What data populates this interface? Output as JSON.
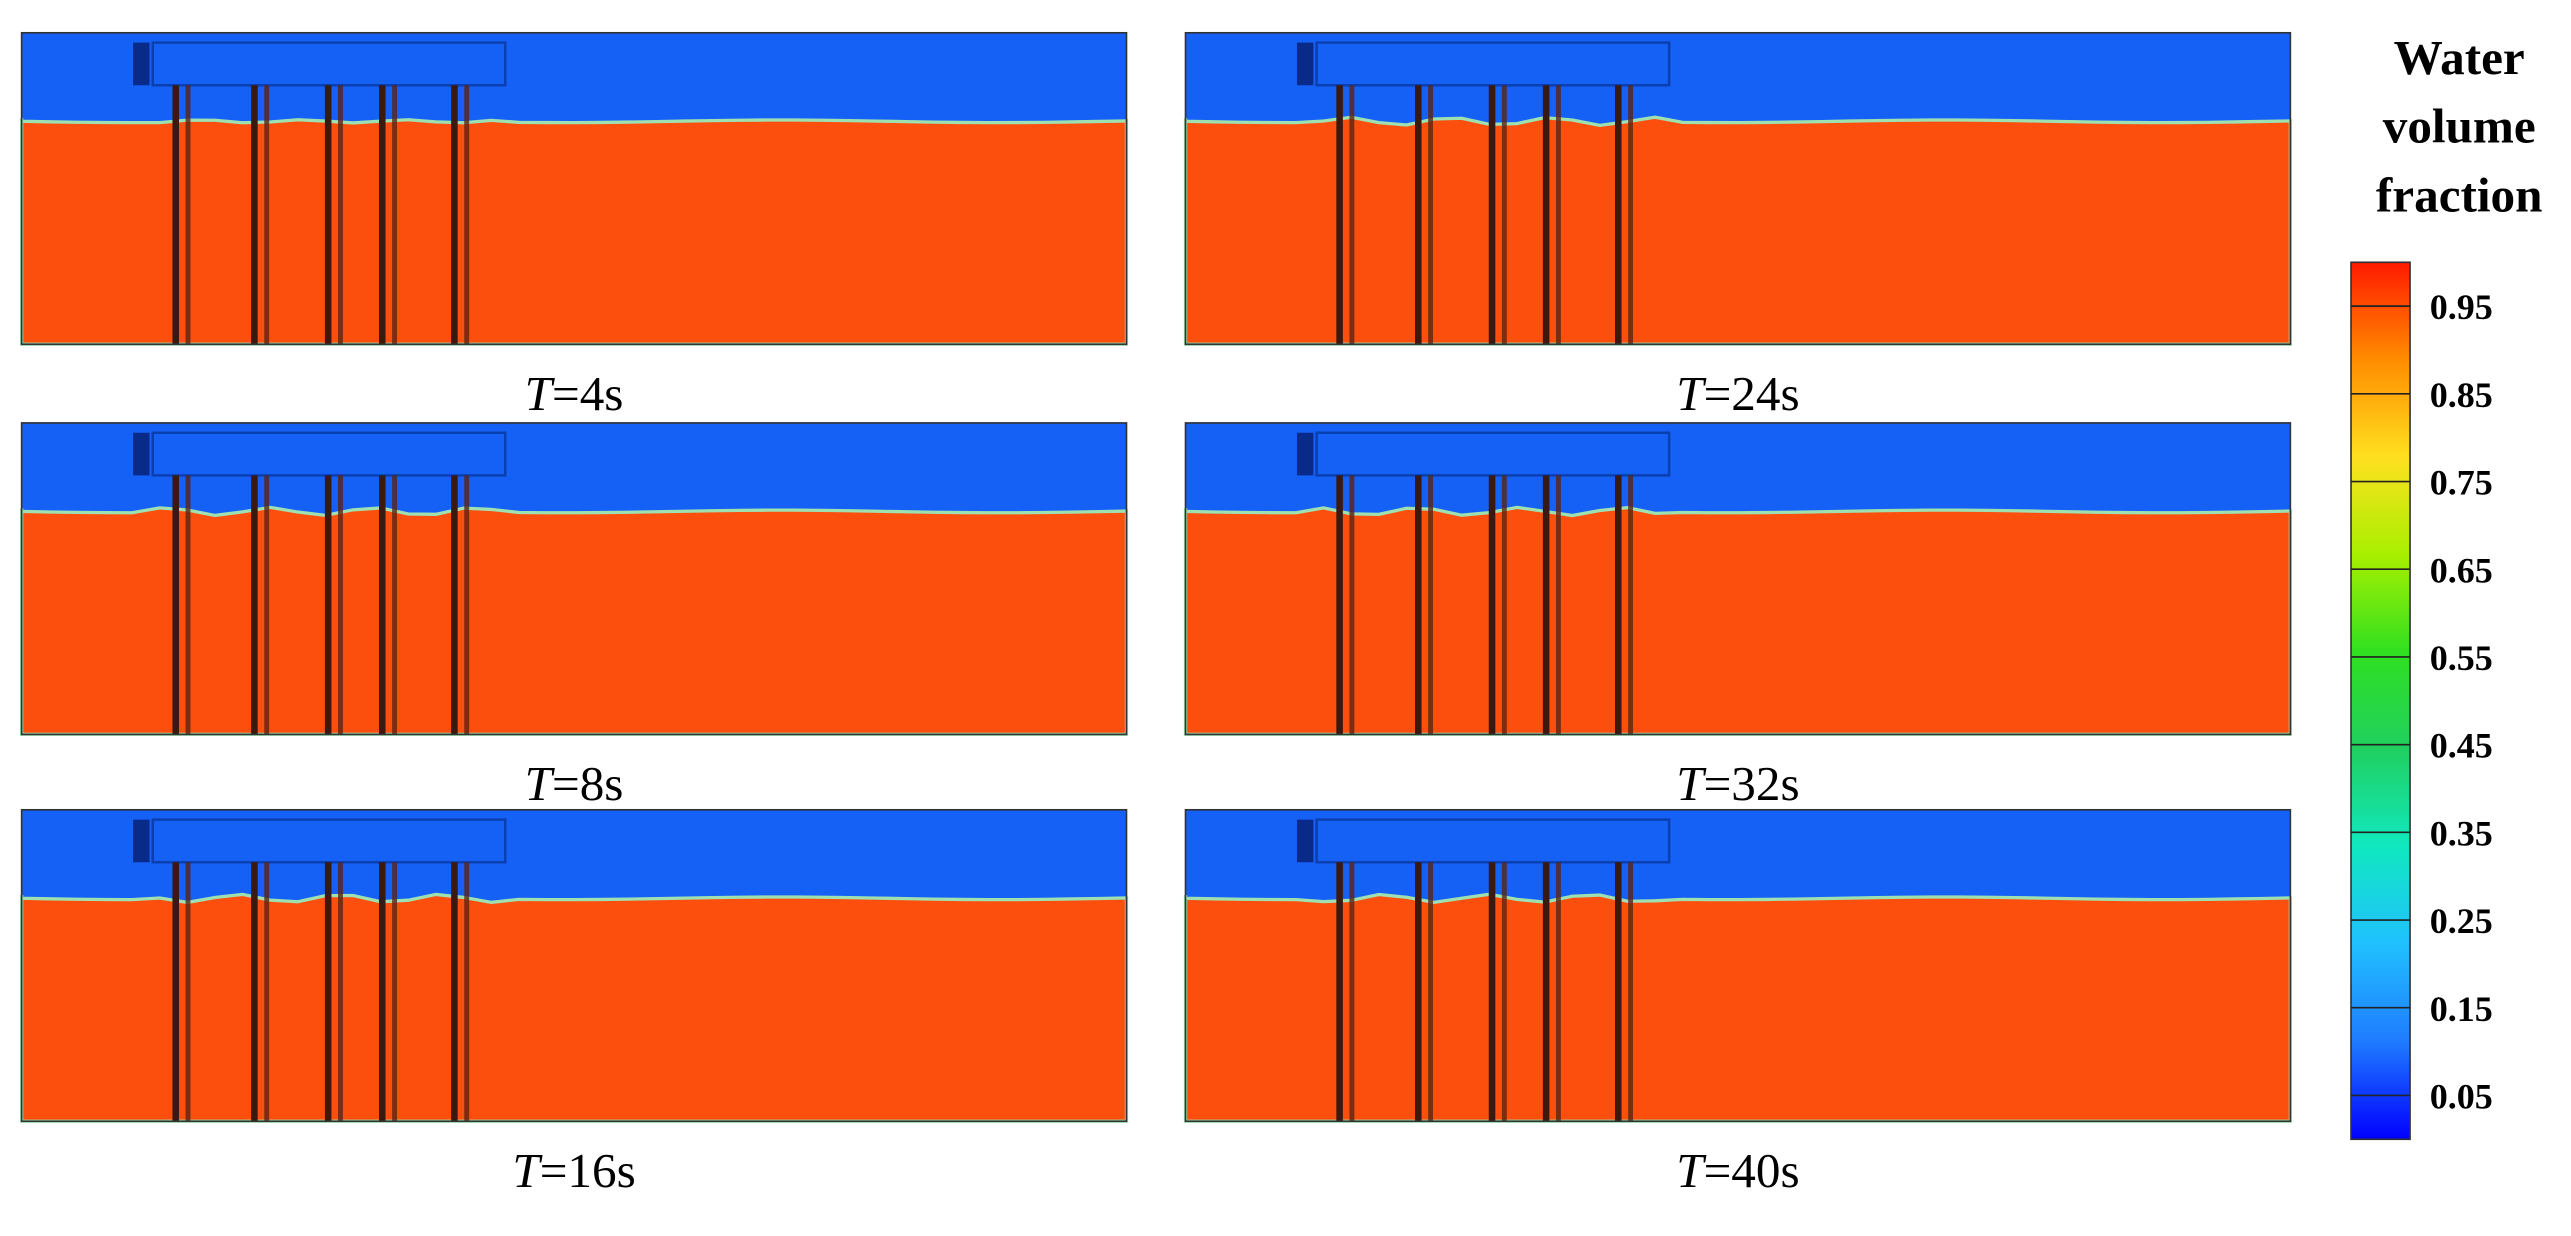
{
  "chart_data": {
    "type": "contour-panels",
    "panels": [
      {
        "italic": "T",
        "text": "=4s"
      },
      {
        "italic": "T",
        "text": "=24s"
      },
      {
        "italic": "T",
        "text": "=8s"
      },
      {
        "italic": "T",
        "text": "=32s"
      },
      {
        "italic": "T",
        "text": "=16s"
      },
      {
        "italic": "T",
        "text": "=40s"
      }
    ],
    "colorbar": {
      "title": [
        "Water",
        "volume",
        "fraction"
      ],
      "clim": [
        0,
        1
      ],
      "ticks": [
        0.05,
        0.15,
        0.25,
        0.35,
        0.45,
        0.55,
        0.65,
        0.75,
        0.85,
        0.95
      ],
      "colors": [
        "#0000ff",
        "#1f7bff",
        "#20c0ff",
        "#10e8c0",
        "#20d060",
        "#30e020",
        "#a8f000",
        "#ffe020",
        "#ff8c00",
        "#ff1a00"
      ]
    },
    "air_color": "#1560f5",
    "water_color": "#fc4f0e"
  }
}
